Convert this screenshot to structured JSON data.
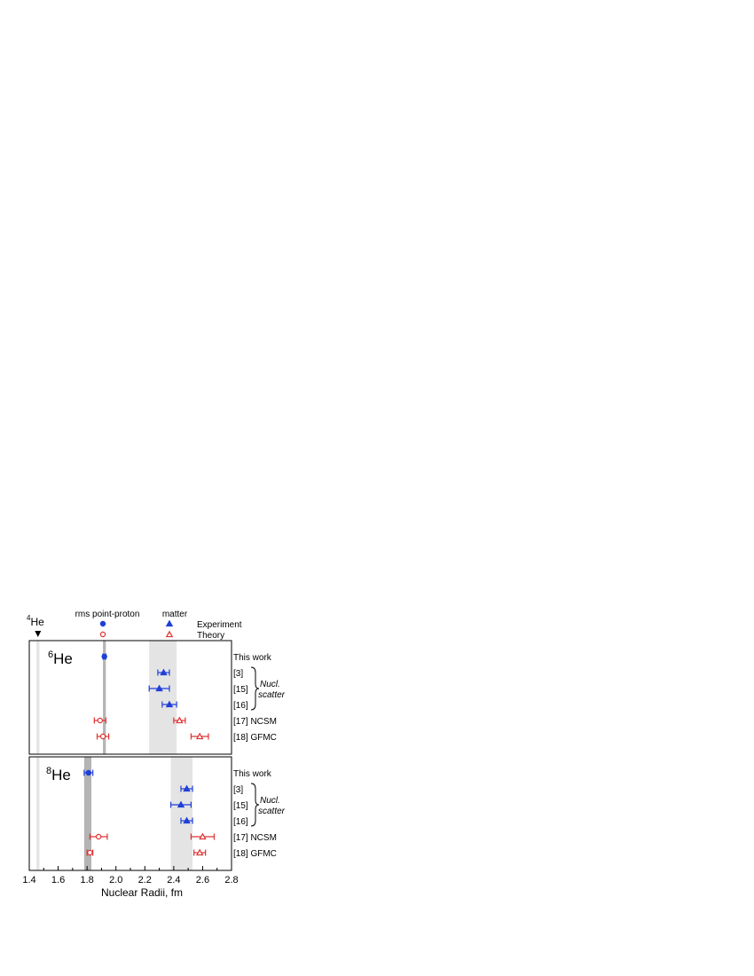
{
  "header": {
    "proton_label": "rms point-proton",
    "matter_label": "matter",
    "experiment_label": "Experiment",
    "theory_label": "Theory",
    "he4_label": {
      "mass": "4",
      "symbol": "He"
    }
  },
  "colors": {
    "experiment": "#1f3fd8",
    "theory": "#e03030",
    "band_light": "#e4e4e4",
    "band_dark": "#b4b4b4"
  },
  "chart_data": {
    "type": "scatter",
    "xlabel": "Nuclear Radii, fm",
    "xlim": [
      1.4,
      2.8
    ],
    "xticks": [
      "1.4",
      "1.6",
      "1.8",
      "2.0",
      "2.2",
      "2.4",
      "2.6",
      "2.8"
    ],
    "he4_marker_x": 1.46,
    "bracket_label": [
      "Nucl.",
      "scatter"
    ],
    "panels": [
      {
        "name": "6He",
        "label": {
          "mass": "6",
          "symbol": "He"
        },
        "bands": [
          {
            "range": [
              1.45,
              1.47
            ],
            "tone": "light"
          },
          {
            "range": [
              1.91,
              1.93
            ],
            "tone": "dark"
          },
          {
            "range": [
              2.23,
              2.42
            ],
            "tone": "light"
          }
        ],
        "rows": [
          {
            "label": "This work",
            "points": [
              {
                "kind": "proton",
                "source": "experiment",
                "x": 1.92,
                "err": 0.01
              }
            ]
          },
          {
            "label": "[3]",
            "points": [
              {
                "kind": "matter",
                "source": "experiment",
                "x": 2.33,
                "err": 0.04
              }
            ]
          },
          {
            "label": "[15]",
            "points": [
              {
                "kind": "matter",
                "source": "experiment",
                "x": 2.3,
                "err": 0.07
              }
            ]
          },
          {
            "label": "[16]",
            "points": [
              {
                "kind": "matter",
                "source": "experiment",
                "x": 2.37,
                "err": 0.05
              }
            ]
          },
          {
            "label": "[17] NCSM",
            "points": [
              {
                "kind": "proton",
                "source": "theory",
                "x": 1.89,
                "err": 0.04
              },
              {
                "kind": "matter",
                "source": "theory",
                "x": 2.44,
                "err": 0.04
              }
            ]
          },
          {
            "label": "[18] GFMC",
            "points": [
              {
                "kind": "proton",
                "source": "theory",
                "x": 1.91,
                "err": 0.04
              },
              {
                "kind": "matter",
                "source": "theory",
                "x": 2.58,
                "err": 0.06
              }
            ]
          }
        ]
      },
      {
        "name": "8He",
        "label": {
          "mass": "8",
          "symbol": "He"
        },
        "bands": [
          {
            "range": [
              1.45,
              1.47
            ],
            "tone": "light"
          },
          {
            "range": [
              1.78,
              1.83
            ],
            "tone": "dark"
          },
          {
            "range": [
              2.38,
              2.53
            ],
            "tone": "light"
          }
        ],
        "rows": [
          {
            "label": "This work",
            "points": [
              {
                "kind": "proton",
                "source": "experiment",
                "x": 1.81,
                "err": 0.03
              }
            ]
          },
          {
            "label": "[3]",
            "points": [
              {
                "kind": "matter",
                "source": "experiment",
                "x": 2.49,
                "err": 0.04
              }
            ]
          },
          {
            "label": "[15]",
            "points": [
              {
                "kind": "matter",
                "source": "experiment",
                "x": 2.45,
                "err": 0.07
              }
            ]
          },
          {
            "label": "[16]",
            "points": [
              {
                "kind": "matter",
                "source": "experiment",
                "x": 2.49,
                "err": 0.04
              }
            ]
          },
          {
            "label": "[17] NCSM",
            "points": [
              {
                "kind": "proton",
                "source": "theory",
                "x": 1.88,
                "err": 0.06
              },
              {
                "kind": "matter",
                "source": "theory",
                "x": 2.6,
                "err": 0.08
              }
            ]
          },
          {
            "label": "[18] GFMC",
            "points": [
              {
                "kind": "proton",
                "source": "theory",
                "x": 1.82,
                "err": 0.02
              },
              {
                "kind": "matter",
                "source": "theory",
                "x": 2.58,
                "err": 0.04
              }
            ]
          }
        ]
      }
    ]
  }
}
